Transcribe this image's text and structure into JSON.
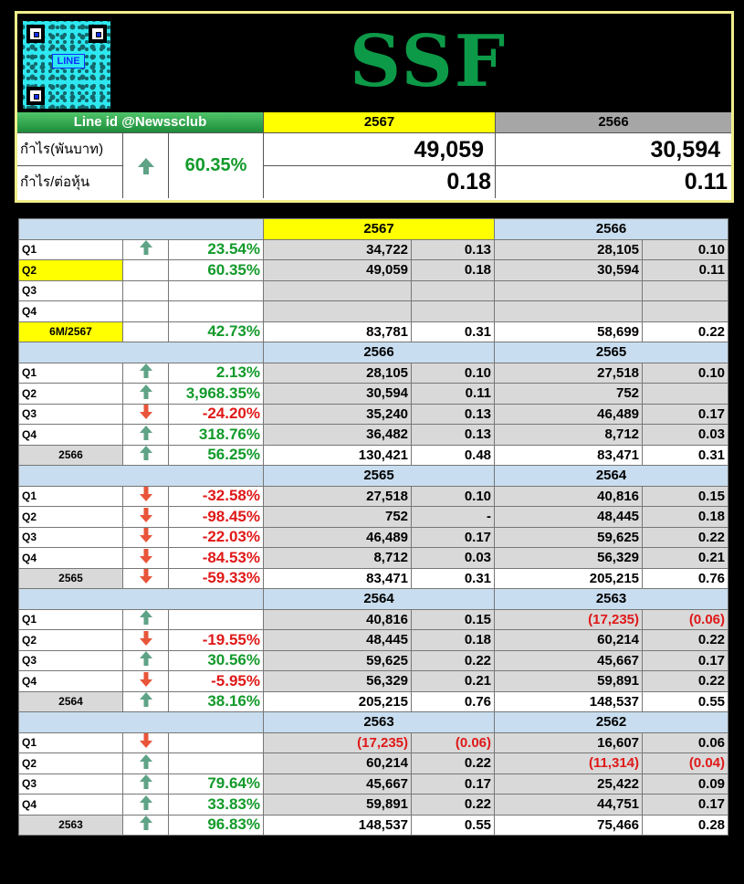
{
  "header": {
    "brand": "SSF",
    "qr_label": "LINE",
    "line_id": "Line id @Newssclub",
    "col_current": "2567",
    "col_previous": "2566",
    "profit_label": "กำไร(พันบาท)",
    "eps_label": "กำไร/ต่อหุ้น",
    "change_pct": "60.35%",
    "profit_current": "49,059",
    "profit_previous": "30,594",
    "eps_current": "0.18",
    "eps_previous": "0.11"
  },
  "colors": {
    "up": "#5fa386",
    "down": "#e8553a",
    "green_text": "#129a2a",
    "red_text": "#e01818",
    "accent_yellow": "#ffff00",
    "section_blue": "#c8ddef"
  },
  "sections": [
    {
      "year_a": "2567",
      "year_b": "2566",
      "highlight": true,
      "rows": [
        {
          "label": "Q1",
          "arrow": "up",
          "pct": "23.54%",
          "pct_color": "green",
          "a_profit": "34,722",
          "a_eps": "0.13",
          "b_profit": "28,105",
          "b_eps": "0.10"
        },
        {
          "label": "Q2",
          "label_hl": true,
          "arrow": "",
          "pct": "60.35%",
          "pct_color": "green",
          "a_profit": "49,059",
          "a_eps": "0.18",
          "b_profit": "30,594",
          "b_eps": "0.11"
        },
        {
          "label": "Q3",
          "arrow": "",
          "pct": "",
          "pct_color": "",
          "a_profit": "",
          "a_eps": "",
          "b_profit": "",
          "b_eps": ""
        },
        {
          "label": "Q4",
          "arrow": "",
          "pct": "",
          "pct_color": "",
          "a_profit": "",
          "a_eps": "",
          "b_profit": "",
          "b_eps": ""
        },
        {
          "label": "6M/2567",
          "total": true,
          "total_hl": true,
          "arrow": "",
          "pct": "42.73%",
          "pct_color": "green",
          "a_profit": "83,781",
          "a_eps": "0.31",
          "b_profit": "58,699",
          "b_eps": "0.22"
        }
      ]
    },
    {
      "year_a": "2566",
      "year_b": "2565",
      "rows": [
        {
          "label": "Q1",
          "arrow": "up",
          "pct": "2.13%",
          "pct_color": "green",
          "a_profit": "28,105",
          "a_eps": "0.10",
          "b_profit": "27,518",
          "b_eps": "0.10"
        },
        {
          "label": "Q2",
          "arrow": "up",
          "pct": "3,968.35%",
          "pct_color": "green",
          "a_profit": "30,594",
          "a_eps": "0.11",
          "b_profit": "752",
          "b_eps": ""
        },
        {
          "label": "Q3",
          "arrow": "down",
          "pct": "-24.20%",
          "pct_color": "red",
          "a_profit": "35,240",
          "a_eps": "0.13",
          "b_profit": "46,489",
          "b_eps": "0.17"
        },
        {
          "label": "Q4",
          "arrow": "up",
          "pct": "318.76%",
          "pct_color": "green",
          "a_profit": "36,482",
          "a_eps": "0.13",
          "b_profit": "8,712",
          "b_eps": "0.03"
        },
        {
          "label": "2566",
          "total": true,
          "arrow": "up",
          "pct": "56.25%",
          "pct_color": "green",
          "a_profit": "130,421",
          "a_eps": "0.48",
          "b_profit": "83,471",
          "b_eps": "0.31"
        }
      ]
    },
    {
      "year_a": "2565",
      "year_b": "2564",
      "rows": [
        {
          "label": "Q1",
          "arrow": "down",
          "pct": "-32.58%",
          "pct_color": "red",
          "a_profit": "27,518",
          "a_eps": "0.10",
          "b_profit": "40,816",
          "b_eps": "0.15"
        },
        {
          "label": "Q2",
          "arrow": "down",
          "pct": "-98.45%",
          "pct_color": "red",
          "a_profit": "752",
          "a_eps": "-",
          "b_profit": "48,445",
          "b_eps": "0.18"
        },
        {
          "label": "Q3",
          "arrow": "down",
          "pct": "-22.03%",
          "pct_color": "red",
          "a_profit": "46,489",
          "a_eps": "0.17",
          "b_profit": "59,625",
          "b_eps": "0.22"
        },
        {
          "label": "Q4",
          "arrow": "down",
          "pct": "-84.53%",
          "pct_color": "red",
          "a_profit": "8,712",
          "a_eps": "0.03",
          "b_profit": "56,329",
          "b_eps": "0.21"
        },
        {
          "label": "2565",
          "total": true,
          "arrow": "down",
          "pct": "-59.33%",
          "pct_color": "red",
          "a_profit": "83,471",
          "a_eps": "0.31",
          "b_profit": "205,215",
          "b_eps": "0.76"
        }
      ]
    },
    {
      "year_a": "2564",
      "year_b": "2563",
      "rows": [
        {
          "label": "Q1",
          "arrow": "up",
          "pct": "",
          "pct_color": "",
          "a_profit": "40,816",
          "a_eps": "0.15",
          "b_profit": "(17,235)",
          "b_eps": "(0.06)",
          "b_neg": true
        },
        {
          "label": "Q2",
          "arrow": "down",
          "pct": "-19.55%",
          "pct_color": "red",
          "a_profit": "48,445",
          "a_eps": "0.18",
          "b_profit": "60,214",
          "b_eps": "0.22"
        },
        {
          "label": "Q3",
          "arrow": "up",
          "pct": "30.56%",
          "pct_color": "green",
          "a_profit": "59,625",
          "a_eps": "0.22",
          "b_profit": "45,667",
          "b_eps": "0.17"
        },
        {
          "label": "Q4",
          "arrow": "down",
          "pct": "-5.95%",
          "pct_color": "red",
          "a_profit": "56,329",
          "a_eps": "0.21",
          "b_profit": "59,891",
          "b_eps": "0.22"
        },
        {
          "label": "2564",
          "total": true,
          "arrow": "up",
          "pct": "38.16%",
          "pct_color": "green",
          "a_profit": "205,215",
          "a_eps": "0.76",
          "b_profit": "148,537",
          "b_eps": "0.55"
        }
      ]
    },
    {
      "year_a": "2563",
      "year_b": "2562",
      "rows": [
        {
          "label": "Q1",
          "arrow": "down",
          "pct": "",
          "pct_color": "",
          "a_profit": "(17,235)",
          "a_eps": "(0.06)",
          "a_neg": true,
          "b_profit": "16,607",
          "b_eps": "0.06"
        },
        {
          "label": "Q2",
          "arrow": "up",
          "pct": "",
          "pct_color": "",
          "a_profit": "60,214",
          "a_eps": "0.22",
          "b_profit": "(11,314)",
          "b_eps": "(0.04)",
          "b_neg": true
        },
        {
          "label": "Q3",
          "arrow": "up",
          "pct": "79.64%",
          "pct_color": "green",
          "a_profit": "45,667",
          "a_eps": "0.17",
          "b_profit": "25,422",
          "b_eps": "0.09"
        },
        {
          "label": "Q4",
          "arrow": "up",
          "pct": "33.83%",
          "pct_color": "green",
          "a_profit": "59,891",
          "a_eps": "0.22",
          "b_profit": "44,751",
          "b_eps": "0.17"
        },
        {
          "label": "2563",
          "total": true,
          "arrow": "up",
          "pct": "96.83%",
          "pct_color": "green",
          "a_profit": "148,537",
          "a_eps": "0.55",
          "b_profit": "75,466",
          "b_eps": "0.28"
        }
      ]
    }
  ]
}
